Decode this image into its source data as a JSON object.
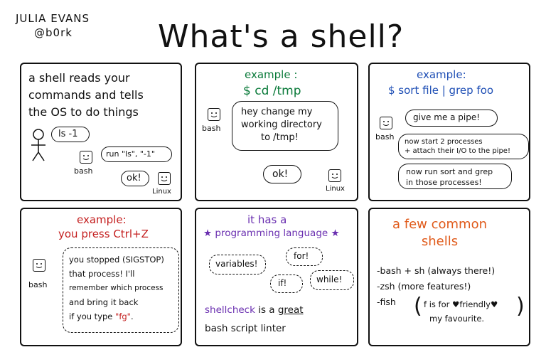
{
  "author": {
    "name": "JULIA EVANS",
    "handle": "@b0rk"
  },
  "title": "What's a shell?",
  "panel1": {
    "text_lines": [
      "a shell reads your",
      "commands and tells",
      "the OS to do things"
    ],
    "person_says": "ls -1",
    "bash_says": "run \"ls\", \"-1\"",
    "bash_label": "bash",
    "linux_says": "ok!",
    "linux_label": "Linux"
  },
  "panel2": {
    "heading": "example :",
    "command": "$ cd /tmp",
    "bash_says_lines": [
      "hey change my",
      "working directory",
      "to /tmp!"
    ],
    "bash_label": "bash",
    "linux_says": "ok!",
    "linux_label": "Linux"
  },
  "panel3": {
    "heading": "example:",
    "command": "$ sort file | grep foo",
    "bubble1": "give me a pipe!",
    "bubble2_lines": [
      "now start 2 processes",
      "+ attach their I/O to the pipe!"
    ],
    "bubble3_lines": [
      "now run sort and grep",
      "in those processes!"
    ],
    "bash_label": "bash"
  },
  "panel4": {
    "heading": "example:",
    "subheading": "you press Ctrl+Z",
    "thought_lines": [
      "you stopped (SIGSTOP)",
      "that process! I'll",
      "remember which process",
      "and bring it back"
    ],
    "last_line_prefix": "if you type ",
    "last_line_cmd": "\"fg\"",
    "last_line_suffix": ".",
    "bash_label": "bash"
  },
  "panel5": {
    "heading": "it has a",
    "subheading": "programming language",
    "clouds": [
      "variables!",
      "for!",
      "if!",
      "while!"
    ],
    "tool": "shellcheck",
    "tool_rest": " is a ",
    "tool_great": "great",
    "tool_line2": "bash script linter"
  },
  "panel6": {
    "heading_lines": [
      "a few common",
      "shells"
    ],
    "items": [
      "-bash + sh (always there!)",
      "-zsh (more features!)",
      "-fish"
    ],
    "fish_note_line1": "f is for ♥friendly♥",
    "fish_note_line2": "my favourite."
  },
  "colors": {
    "green": "#0a7a3a",
    "blue": "#1f4fb5",
    "red": "#c42020",
    "purple": "#6a2fb0",
    "orange": "#e05a1a",
    "ink": "#111111"
  }
}
